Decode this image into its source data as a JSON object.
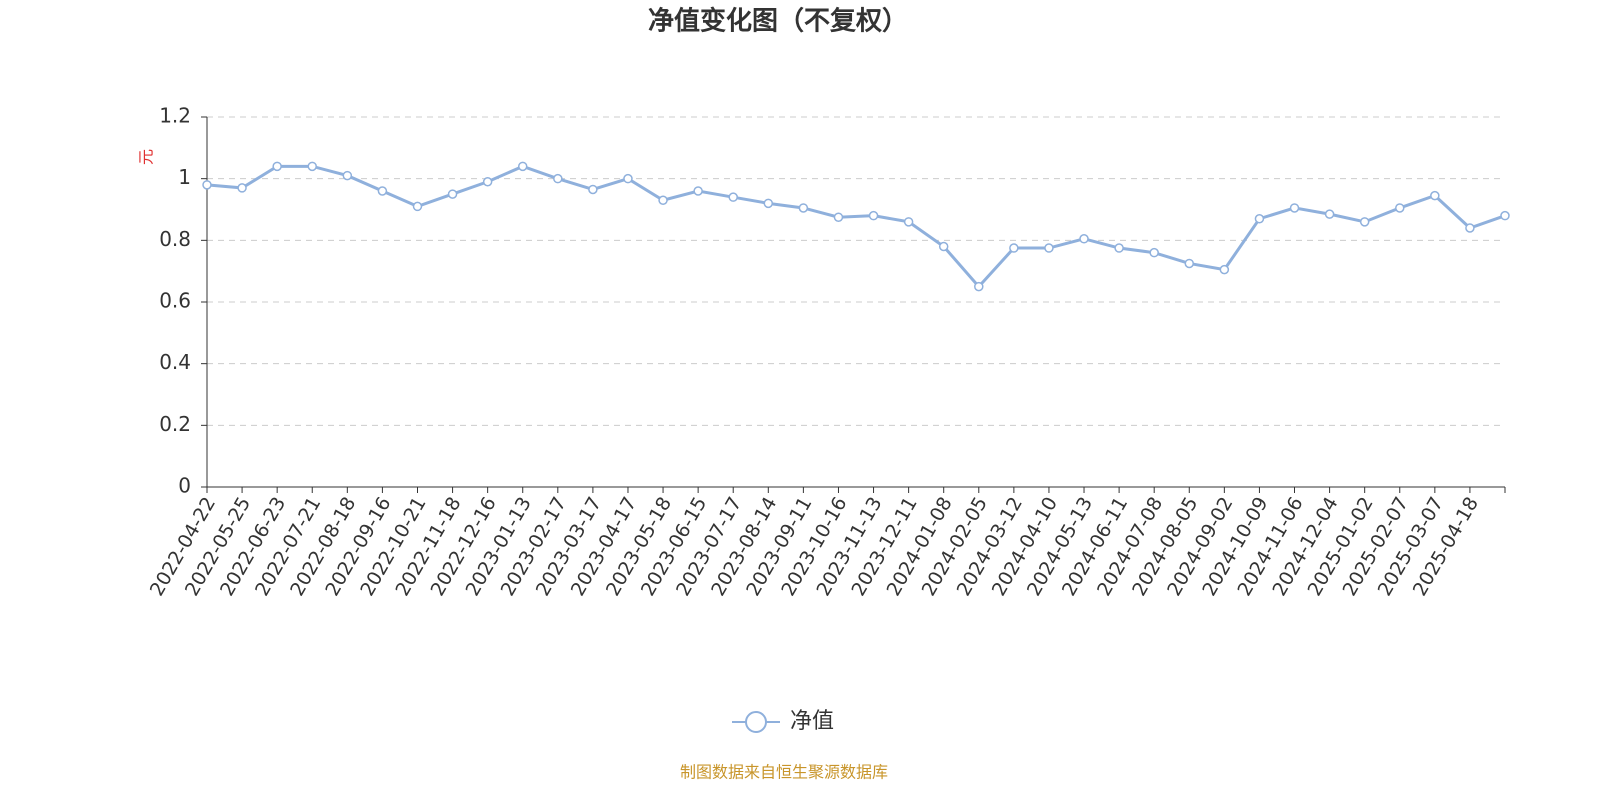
{
  "chart_data": {
    "type": "line",
    "title": "净值变化图（不复权）",
    "y_label": "元",
    "source": "制图数据来自恒生聚源数据库",
    "categories": [
      "2022-04-22",
      "2022-05-25",
      "2022-06-23",
      "2022-07-21",
      "2022-08-18",
      "2022-09-16",
      "2022-10-21",
      "2022-11-18",
      "2022-12-16",
      "2023-01-13",
      "2023-02-17",
      "2023-03-17",
      "2023-04-17",
      "2023-05-18",
      "2023-06-15",
      "2023-07-17",
      "2023-08-14",
      "2023-09-11",
      "2023-10-16",
      "2023-11-13",
      "2023-12-11",
      "2024-01-08",
      "2024-02-05",
      "2024-03-12",
      "2024-04-10",
      "2024-05-13",
      "2024-06-11",
      "2024-07-08",
      "2024-08-05",
      "2024-09-02",
      "2024-10-09",
      "2024-11-06",
      "2024-12-04",
      "2025-01-02",
      "2025-02-07",
      "2025-03-07",
      "2025-04-18",
      null
    ],
    "series": [
      {
        "name": "净值",
        "color": "#8fb0dc",
        "values": [
          0.98,
          0.97,
          1.04,
          1.04,
          1.01,
          0.96,
          0.91,
          0.95,
          0.99,
          1.04,
          1.0,
          0.965,
          1.0,
          0.93,
          0.96,
          0.94,
          0.92,
          0.905,
          0.875,
          0.88,
          0.86,
          0.78,
          0.65,
          0.775,
          0.775,
          0.805,
          0.775,
          0.76,
          0.725,
          0.705,
          0.87,
          0.905,
          0.885,
          0.86,
          0.905,
          0.945,
          0.84,
          0.88
        ]
      }
    ],
    "ylim": [
      0,
      1.2
    ],
    "yticks": [
      0,
      0.2,
      0.4,
      0.6,
      0.8,
      1,
      1.2
    ],
    "grid": true,
    "legend": "bottom"
  }
}
